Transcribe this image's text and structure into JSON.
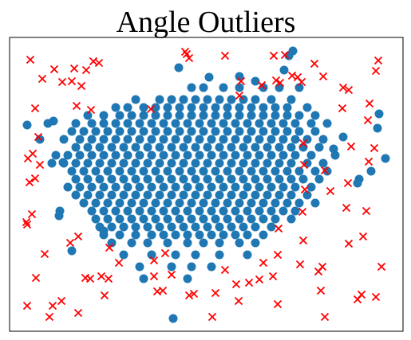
{
  "chart_data": {
    "type": "scatter",
    "title": "Angle Outliers",
    "xlim": [
      12,
      505
    ],
    "ylim": [
      0,
      369
    ],
    "series": [
      {
        "color": "#1f77b4",
        "marker": "o",
        "x": [
          240,
          255,
          280,
          300,
          330,
          350,
          375,
          170,
          200,
          215,
          230,
          245,
          260,
          275,
          290,
          305,
          320,
          340,
          365,
          145,
          160,
          180,
          195,
          210,
          225,
          240,
          255,
          270,
          285,
          300,
          315,
          330,
          345,
          360,
          385,
          110,
          130,
          150,
          165,
          180,
          195,
          210,
          225,
          240,
          255,
          270,
          285,
          300,
          315,
          330,
          345,
          360,
          375,
          395,
          60,
          95,
          115,
          130,
          145,
          160,
          175,
          190,
          205,
          220,
          235,
          250,
          265,
          280,
          295,
          310,
          325,
          340,
          355,
          370,
          390,
          410,
          90,
          105,
          120,
          135,
          150,
          165,
          180,
          195,
          210,
          225,
          240,
          255,
          270,
          285,
          300,
          315,
          330,
          345,
          360,
          375,
          395,
          80,
          100,
          115,
          130,
          145,
          160,
          175,
          190,
          205,
          220,
          235,
          250,
          265,
          280,
          295,
          310,
          325,
          340,
          355,
          370,
          385,
          405,
          95,
          110,
          125,
          140,
          155,
          170,
          185,
          200,
          215,
          230,
          245,
          260,
          275,
          290,
          305,
          320,
          335,
          350,
          365,
          380,
          400,
          70,
          85,
          100,
          115,
          130,
          145,
          160,
          175,
          190,
          205,
          220,
          235,
          250,
          265,
          280,
          295,
          310,
          325,
          340,
          355,
          370,
          390,
          420,
          65,
          80,
          95,
          110,
          125,
          140,
          155,
          170,
          185,
          200,
          215,
          230,
          245,
          260,
          275,
          290,
          305,
          320,
          335,
          350,
          365,
          385,
          405,
          90,
          105,
          120,
          135,
          150,
          165,
          180,
          195,
          210,
          225,
          240,
          255,
          270,
          285,
          300,
          315,
          330,
          345,
          360,
          375,
          395,
          410,
          95,
          110,
          125,
          140,
          155,
          170,
          185,
          200,
          215,
          230,
          245,
          260,
          275,
          290,
          305,
          320,
          335,
          350,
          365,
          380,
          400,
          450,
          85,
          100,
          115,
          130,
          145,
          160,
          175,
          190,
          205,
          220,
          235,
          250,
          265,
          280,
          295,
          310,
          325,
          340,
          355,
          370,
          390,
          95,
          110,
          125,
          140,
          155,
          170,
          185,
          200,
          215,
          230,
          245,
          260,
          275,
          290,
          305,
          320,
          335,
          350,
          365,
          385,
          105,
          120,
          135,
          150,
          165,
          180,
          195,
          210,
          225,
          240,
          255,
          270,
          285,
          300,
          315,
          330,
          345,
          360,
          375,
          395,
          75,
          115,
          130,
          145,
          160,
          175,
          190,
          205,
          220,
          235,
          250,
          265,
          280,
          295,
          310,
          325,
          340,
          355,
          370,
          120,
          135,
          150,
          165,
          180,
          195,
          210,
          225,
          240,
          255,
          270,
          285,
          300,
          315,
          330,
          345,
          365,
          125,
          140,
          155,
          170,
          185,
          200,
          215,
          230,
          245,
          260,
          275,
          290,
          305,
          320,
          340,
          130,
          150,
          170,
          190,
          205,
          220,
          235,
          250,
          265,
          280,
          295,
          310,
          330,
          140,
          165,
          185,
          210,
          235,
          255,
          275,
          300,
          320,
          155,
          190,
          220,
          245,
          275,
          310,
          175,
          215,
          240,
          265,
          180,
          235,
          224,
          262,
          300,
          320,
          367,
          362,
          356,
          34,
          50,
          67,
          79,
          74,
          475,
          483,
          465,
          448,
          473,
          430,
          418,
          217,
          90,
          130
        ],
        "values": [
          306,
          306,
          306,
          306,
          306,
          306,
          306,
          291,
          291,
          291,
          291,
          291,
          291,
          291,
          291,
          291,
          291,
          291,
          291,
          281,
          281,
          281,
          281,
          281,
          281,
          281,
          281,
          281,
          281,
          281,
          281,
          281,
          281,
          281,
          281,
          271,
          271,
          271,
          271,
          271,
          271,
          271,
          271,
          271,
          271,
          271,
          271,
          271,
          271,
          271,
          271,
          271,
          271,
          271,
          261,
          261,
          261,
          261,
          261,
          261,
          261,
          261,
          261,
          261,
          261,
          261,
          261,
          261,
          261,
          261,
          261,
          261,
          261,
          261,
          261,
          261,
          251,
          251,
          251,
          251,
          251,
          251,
          251,
          251,
          251,
          251,
          251,
          251,
          251,
          251,
          251,
          251,
          251,
          251,
          251,
          251,
          251,
          241,
          241,
          241,
          241,
          241,
          241,
          241,
          241,
          241,
          241,
          241,
          241,
          241,
          241,
          241,
          241,
          241,
          241,
          241,
          241,
          241,
          241,
          231,
          231,
          231,
          231,
          231,
          231,
          231,
          231,
          231,
          231,
          231,
          231,
          231,
          231,
          231,
          231,
          231,
          231,
          231,
          231,
          231,
          221,
          221,
          221,
          221,
          221,
          221,
          221,
          221,
          221,
          221,
          221,
          221,
          221,
          221,
          221,
          221,
          221,
          221,
          221,
          221,
          221,
          221,
          221,
          211,
          211,
          211,
          211,
          211,
          211,
          211,
          211,
          211,
          211,
          211,
          211,
          211,
          211,
          211,
          211,
          211,
          211,
          211,
          211,
          211,
          211,
          211,
          201,
          201,
          201,
          201,
          201,
          201,
          201,
          201,
          201,
          201,
          201,
          201,
          201,
          201,
          201,
          201,
          201,
          201,
          201,
          201,
          201,
          201,
          191,
          191,
          191,
          191,
          191,
          191,
          191,
          191,
          191,
          191,
          191,
          191,
          191,
          191,
          191,
          191,
          191,
          191,
          191,
          191,
          191,
          191,
          181,
          181,
          181,
          181,
          181,
          181,
          181,
          181,
          181,
          181,
          181,
          181,
          181,
          181,
          181,
          181,
          181,
          181,
          181,
          181,
          181,
          171,
          171,
          171,
          171,
          171,
          171,
          171,
          171,
          171,
          171,
          171,
          171,
          171,
          171,
          171,
          171,
          171,
          171,
          171,
          171,
          161,
          161,
          161,
          161,
          161,
          161,
          161,
          161,
          161,
          161,
          161,
          161,
          161,
          161,
          161,
          161,
          161,
          161,
          161,
          161,
          151,
          151,
          151,
          151,
          151,
          151,
          151,
          151,
          151,
          151,
          151,
          151,
          151,
          151,
          151,
          151,
          151,
          151,
          151,
          141,
          141,
          141,
          141,
          141,
          141,
          141,
          141,
          141,
          141,
          141,
          141,
          141,
          141,
          141,
          141,
          141,
          131,
          131,
          131,
          131,
          131,
          131,
          131,
          131,
          131,
          131,
          131,
          131,
          131,
          131,
          131,
          121,
          121,
          121,
          121,
          121,
          121,
          121,
          121,
          121,
          121,
          121,
          121,
          121,
          111,
          111,
          111,
          111,
          111,
          111,
          111,
          111,
          111,
          96,
          96,
          96,
          96,
          96,
          96,
          81,
          81,
          81,
          81,
          66,
          66,
          331,
          319,
          320,
          314,
          352,
          346,
          328,
          259,
          241,
          264,
          212,
          145,
          273,
          217,
          201,
          186,
          255,
          244,
          229,
          16,
          101,
          126
        ]
      },
      {
        "color": "#ff0000",
        "marker": "x",
        "x": [
          38,
          53,
          68,
          78,
          90,
          93,
          117,
          124,
          108,
          102,
          96,
          114,
          44,
          48,
          35,
          41,
          50,
          37,
          44,
          40,
          33,
          34,
          98,
          88,
          56,
          45,
          34,
          66,
          77,
          62,
          98,
          107,
          113,
          127,
          136,
          131,
          137,
          149,
          193,
          207,
          193,
          197,
          204,
          215,
          237,
          243,
          266,
          270,
          282,
          296,
          299,
          312,
          325,
          330,
          348,
          342,
          348,
          376,
          380,
          379,
          382,
          380,
          381,
          349,
          399,
          402,
          404,
          407,
          414,
          407,
          434,
          437,
          455,
          459,
          448,
          453,
          471,
          478,
          436,
          440,
          462,
          461,
          469,
          463,
          471,
          474,
          437,
          430,
          429,
          405,
          394,
          378,
          373,
          366,
          357,
          343,
          351,
          346,
          328,
          300,
          302,
          282,
          232,
          234,
          237,
          189
        ],
        "values": [
          341,
          317,
          329,
          313,
          314,
          330,
          339,
          337,
          328,
          308,
          283,
          278,
          280,
          244,
          217,
          223,
          209,
          187,
          192,
          147,
          137,
          134,
          119,
          111,
          97,
          67,
          32,
          32,
          38,
          18,
          23,
          67,
          66,
          69,
          66,
          45,
          105,
          86,
          89,
          98,
          69,
          50,
          51,
          71,
          45,
          47,
          18,
          48,
          77,
          59,
          38,
          61,
          65,
          86,
          96,
          69,
          34,
          84,
          114,
          150,
          178,
          236,
          209,
          129,
          75,
          51,
          81,
          18,
          176,
          202,
          155,
          110,
          119,
          151,
          40,
          46,
          43,
          81,
          186,
          232,
          213,
          265,
          230,
          286,
          327,
          340,
          303,
          306,
          280,
          320,
          336,
          313,
          319,
          321,
          347,
          346,
          312,
          315,
          309,
          296,
          314,
          346,
          351,
          348,
          343,
          279
        ]
      }
    ]
  }
}
